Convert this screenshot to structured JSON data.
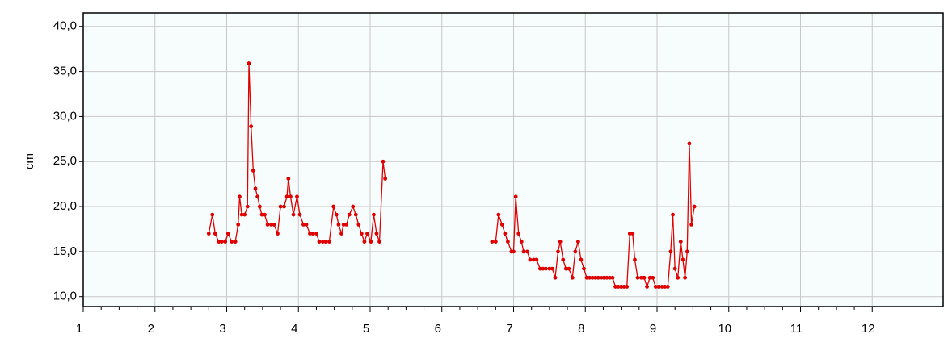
{
  "chart_data": {
    "type": "line",
    "ylabel": "cm",
    "xlim": [
      1,
      13
    ],
    "ylim": [
      8.9,
      41.5
    ],
    "xticks": [
      1,
      2,
      3,
      4,
      5,
      6,
      7,
      8,
      9,
      10,
      11,
      12
    ],
    "yticks": [
      {
        "value": 10,
        "label": "10,0"
      },
      {
        "value": 15,
        "label": "15,0"
      },
      {
        "value": 20,
        "label": "20,0"
      },
      {
        "value": 25,
        "label": "25,0"
      },
      {
        "value": 30,
        "label": "30,0"
      },
      {
        "value": 35,
        "label": "35,0"
      },
      {
        "value": 40,
        "label": "40,0"
      }
    ],
    "grid": true,
    "series": [
      {
        "color": "#e00000",
        "x": [
          2.75,
          2.8,
          2.84,
          2.89,
          2.93,
          2.98,
          3.02,
          3.07,
          3.12,
          3.16,
          3.18,
          3.21,
          3.25,
          3.29,
          3.31,
          3.34,
          3.37,
          3.4,
          3.43,
          3.46,
          3.49,
          3.53,
          3.57,
          3.62,
          3.66,
          3.71,
          3.75,
          3.8,
          3.84,
          3.86,
          3.89,
          3.93,
          3.98,
          4.02,
          4.07,
          4.11,
          4.16,
          4.2,
          4.25,
          4.29,
          4.34,
          4.38,
          4.43,
          4.49,
          4.53,
          4.56,
          4.6,
          4.63,
          4.67,
          4.71,
          4.76,
          4.8,
          4.84,
          4.88,
          4.92,
          4.96,
          5.01,
          5.05,
          5.09,
          5.13,
          5.18,
          5.21,
          null,
          6.7,
          6.75,
          6.79,
          6.84,
          6.88,
          6.92,
          6.97,
          7.0,
          7.03,
          7.07,
          7.11,
          7.14,
          7.19,
          7.23,
          7.28,
          7.32,
          7.37,
          7.41,
          7.45,
          7.5,
          7.54,
          7.58,
          7.62,
          7.65,
          7.69,
          7.73,
          7.77,
          7.82,
          7.86,
          7.9,
          7.94,
          7.98,
          8.02,
          8.06,
          8.1,
          8.14,
          8.18,
          8.22,
          8.26,
          8.3,
          8.34,
          8.38,
          8.42,
          8.46,
          8.5,
          8.54,
          8.58,
          8.62,
          8.66,
          8.69,
          8.73,
          8.78,
          8.82,
          8.86,
          8.9,
          8.94,
          8.98,
          9.02,
          9.07,
          9.11,
          9.15,
          9.19,
          9.22,
          9.25,
          9.29,
          9.33,
          9.36,
          9.39,
          9.42,
          9.45,
          9.48,
          9.52
        ],
        "values": [
          17,
          19.1,
          17,
          16.1,
          16.1,
          16.1,
          17,
          16.1,
          16.1,
          18,
          21.1,
          19.1,
          19.1,
          20,
          35.9,
          28.9,
          24,
          22,
          21.1,
          20,
          19.1,
          19.1,
          18,
          18,
          18,
          17,
          20,
          20,
          21.1,
          23.1,
          21.1,
          19.1,
          21.1,
          19.1,
          18,
          18,
          17,
          17,
          17,
          16.1,
          16.1,
          16.1,
          16.1,
          20,
          19.1,
          18,
          17,
          18,
          18,
          19.1,
          20,
          19.1,
          18,
          17,
          16.1,
          17,
          16.1,
          19.1,
          17,
          16.1,
          25,
          23.1,
          null,
          16.1,
          16.1,
          19.1,
          18,
          17,
          16.1,
          15,
          15,
          21.1,
          17,
          16.1,
          15,
          15,
          14.1,
          14.1,
          14.1,
          13.1,
          13.1,
          13.1,
          13.1,
          13.1,
          12.1,
          15,
          16.1,
          14.1,
          13.1,
          13.1,
          12.1,
          15,
          16.1,
          14.1,
          13.1,
          12.1,
          12.1,
          12.1,
          12.1,
          12.1,
          12.1,
          12.1,
          12.1,
          12.1,
          12.1,
          11.1,
          11.1,
          11.1,
          11.1,
          11.1,
          17,
          17,
          14.1,
          12.1,
          12.1,
          12.1,
          11.1,
          12.1,
          12.1,
          11.1,
          11.1,
          11.1,
          11.1,
          11.1,
          15,
          19.1,
          13.1,
          12.1,
          16.1,
          14.1,
          12.1,
          15,
          27,
          18,
          20
        ]
      }
    ]
  }
}
